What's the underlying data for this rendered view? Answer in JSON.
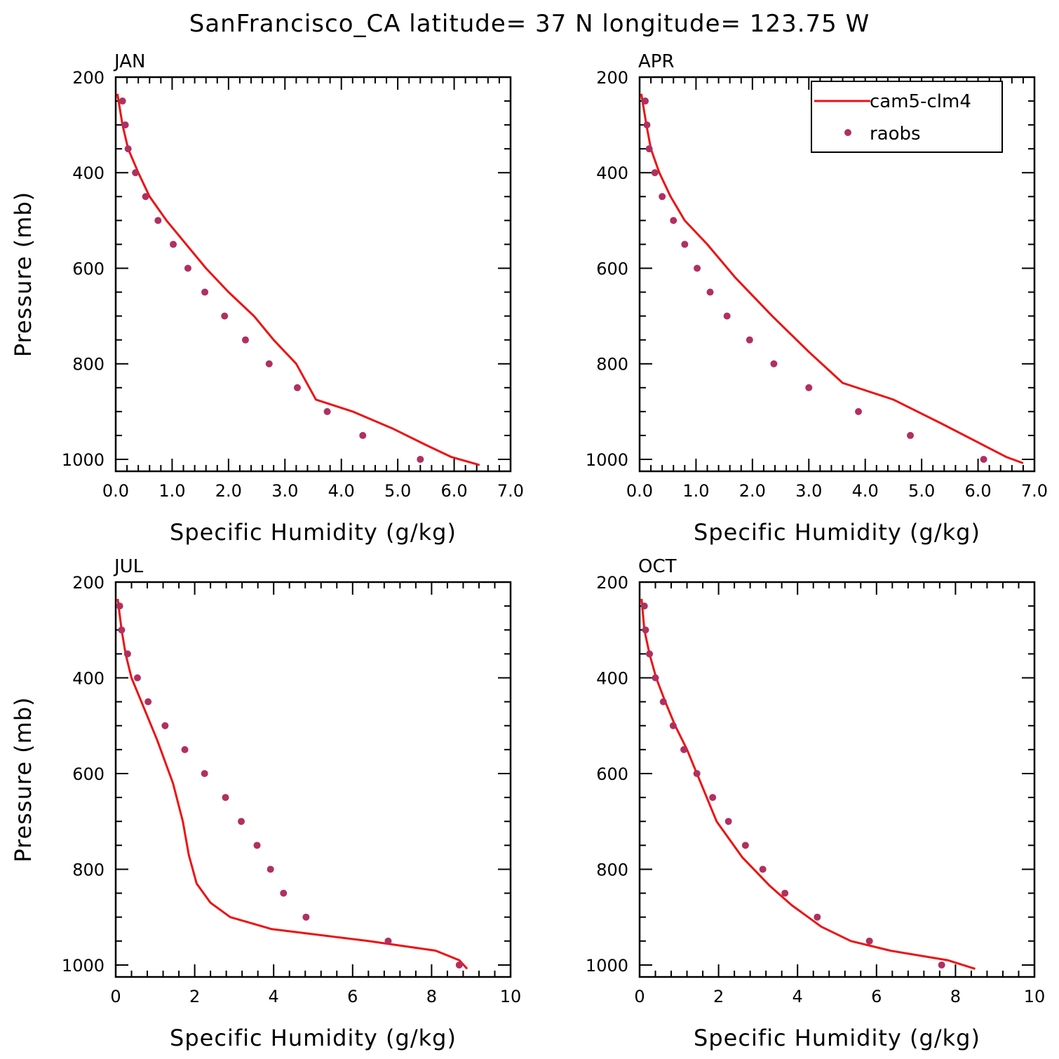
{
  "figure": {
    "title": "SanFrancisco_CA  latitude= 37 N longitude= 123.75 W"
  },
  "legend": {
    "model_label": "cam5-clm4",
    "obs_label": "raobs"
  },
  "colors": {
    "model_line": "#ee1111",
    "obs_marker": "#b03060",
    "axis": "#000000"
  },
  "chart_data": [
    {
      "type": "line",
      "month": "JAN",
      "xlabel": "Specific Humidity (g/kg)",
      "ylabel": "Pressure (mb)",
      "xlim": [
        0,
        7
      ],
      "ylim": [
        1025,
        200
      ],
      "x_ticks": [
        0,
        1,
        2,
        3,
        4,
        5,
        6,
        7
      ],
      "x_tick_labels": [
        "0.0",
        "1.0",
        "2.0",
        "3.0",
        "4.0",
        "5.0",
        "6.0",
        "7.0"
      ],
      "y_ticks": [
        200,
        400,
        600,
        800,
        1000
      ],
      "y_tick_labels": [
        "200",
        "400",
        "600",
        "800",
        "1000"
      ],
      "series": [
        {
          "name": "cam5-clm4",
          "style": "line",
          "x": [
            0.03,
            0.12,
            0.22,
            0.4,
            0.6,
            0.9,
            1.25,
            1.6,
            2.0,
            2.45,
            2.8,
            3.2,
            3.55,
            4.2,
            4.9,
            5.5,
            5.95,
            6.45
          ],
          "y": [
            235,
            300,
            350,
            400,
            450,
            500,
            550,
            600,
            650,
            700,
            750,
            800,
            875,
            900,
            935,
            970,
            995,
            1012
          ]
        },
        {
          "name": "raobs",
          "style": "markers",
          "x": [
            0.12,
            0.17,
            0.22,
            0.35,
            0.53,
            0.75,
            1.02,
            1.28,
            1.58,
            1.93,
            2.3,
            2.72,
            3.22,
            3.75,
            4.38,
            5.4
          ],
          "y": [
            250,
            300,
            350,
            400,
            450,
            500,
            550,
            600,
            650,
            700,
            750,
            800,
            850,
            900,
            950,
            1000
          ]
        }
      ]
    },
    {
      "type": "line",
      "month": "APR",
      "xlabel": "Specific Humidity (g/kg)",
      "ylabel": "",
      "xlim": [
        0,
        7
      ],
      "ylim": [
        1025,
        200
      ],
      "x_ticks": [
        0,
        1,
        2,
        3,
        4,
        5,
        6,
        7
      ],
      "x_tick_labels": [
        "0.0",
        "1.0",
        "2.0",
        "3.0",
        "4.0",
        "5.0",
        "6.0",
        "7.0"
      ],
      "y_ticks": [
        200,
        400,
        600,
        800,
        1000
      ],
      "y_tick_labels": [
        "200",
        "400",
        "600",
        "800",
        "1000"
      ],
      "show_legend": true,
      "series": [
        {
          "name": "cam5-clm4",
          "style": "line",
          "x": [
            0.03,
            0.12,
            0.2,
            0.35,
            0.55,
            0.8,
            1.2,
            1.7,
            2.35,
            3.0,
            3.6,
            4.5,
            5.35,
            6.5,
            6.8
          ],
          "y": [
            235,
            300,
            350,
            400,
            450,
            500,
            550,
            620,
            700,
            775,
            840,
            875,
            925,
            995,
            1008
          ]
        },
        {
          "name": "raobs",
          "style": "markers",
          "x": [
            0.1,
            0.13,
            0.17,
            0.27,
            0.4,
            0.6,
            0.8,
            1.02,
            1.25,
            1.55,
            1.95,
            2.38,
            3.0,
            3.88,
            4.8,
            6.1
          ],
          "y": [
            250,
            300,
            350,
            400,
            450,
            500,
            550,
            600,
            650,
            700,
            750,
            800,
            850,
            900,
            950,
            1000
          ]
        }
      ]
    },
    {
      "type": "line",
      "month": "JUL",
      "xlabel": "Specific Humidity (g/kg)",
      "ylabel": "Pressure (mb)",
      "xlim": [
        0,
        10
      ],
      "ylim": [
        1025,
        200
      ],
      "x_ticks": [
        0,
        2,
        4,
        6,
        8,
        10
      ],
      "x_tick_labels": [
        "0",
        "2",
        "4",
        "6",
        "8",
        "10"
      ],
      "y_ticks": [
        200,
        400,
        600,
        800,
        1000
      ],
      "y_tick_labels": [
        "200",
        "400",
        "600",
        "800",
        "1000"
      ],
      "series": [
        {
          "name": "cam5-clm4",
          "style": "line",
          "x": [
            0.05,
            0.15,
            0.25,
            0.4,
            0.65,
            1.05,
            1.45,
            1.7,
            1.85,
            2.05,
            2.4,
            2.9,
            3.95,
            6.4,
            8.1,
            8.7,
            8.9
          ],
          "y": [
            235,
            300,
            350,
            400,
            450,
            530,
            620,
            700,
            770,
            830,
            870,
            900,
            925,
            950,
            970,
            990,
            1008
          ]
        },
        {
          "name": "raobs",
          "style": "markers",
          "x": [
            0.1,
            0.15,
            0.3,
            0.55,
            0.82,
            1.25,
            1.75,
            2.25,
            2.78,
            3.18,
            3.58,
            3.92,
            4.25,
            4.82,
            6.9,
            8.7
          ],
          "y": [
            250,
            300,
            350,
            400,
            450,
            500,
            550,
            600,
            650,
            700,
            750,
            800,
            850,
            900,
            950,
            1000
          ]
        }
      ]
    },
    {
      "type": "line",
      "month": "OCT",
      "xlabel": "Specific Humidity (g/kg)",
      "ylabel": "",
      "xlim": [
        0,
        10
      ],
      "ylim": [
        1025,
        200
      ],
      "x_ticks": [
        0,
        2,
        4,
        6,
        8,
        10
      ],
      "x_tick_labels": [
        "0",
        "2",
        "4",
        "6",
        "8",
        "10"
      ],
      "y_ticks": [
        200,
        400,
        600,
        800,
        1000
      ],
      "y_tick_labels": [
        "200",
        "400",
        "600",
        "800",
        "1000"
      ],
      "series": [
        {
          "name": "cam5-clm4",
          "style": "line",
          "x": [
            0.05,
            0.12,
            0.25,
            0.42,
            0.65,
            0.9,
            1.2,
            1.55,
            1.95,
            2.6,
            3.3,
            3.85,
            4.6,
            5.35,
            6.35,
            7.8,
            8.5
          ],
          "y": [
            235,
            300,
            350,
            400,
            450,
            500,
            550,
            620,
            700,
            775,
            835,
            875,
            920,
            950,
            970,
            990,
            1008
          ]
        },
        {
          "name": "raobs",
          "style": "markers",
          "x": [
            0.12,
            0.15,
            0.25,
            0.4,
            0.6,
            0.85,
            1.12,
            1.45,
            1.85,
            2.25,
            2.68,
            3.12,
            3.68,
            4.5,
            5.82,
            7.65
          ],
          "y": [
            250,
            300,
            350,
            400,
            450,
            500,
            550,
            600,
            650,
            700,
            750,
            800,
            850,
            900,
            950,
            1000
          ]
        }
      ]
    }
  ]
}
